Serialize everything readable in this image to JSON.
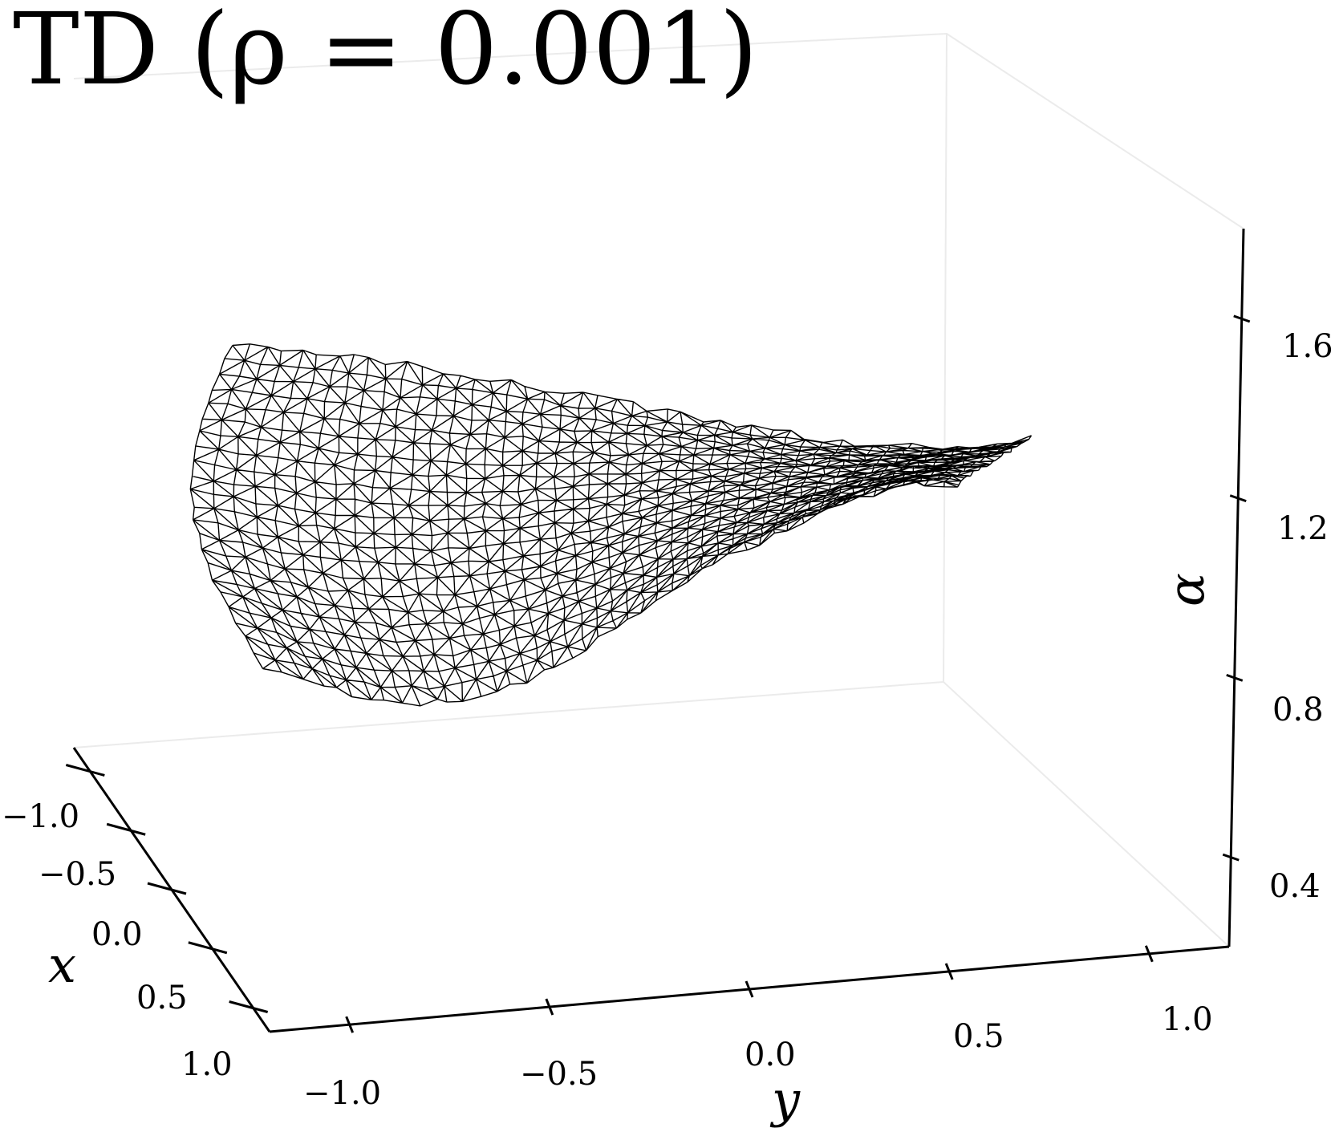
{
  "chart_data": {
    "type": "3d-wireframe",
    "title": "TD (ρ = 0.001)",
    "axes": {
      "x": {
        "label": "x",
        "ticks": [
          -1.0,
          -0.5,
          0.0,
          0.5,
          1.0
        ],
        "tick_labels": [
          "−1.0",
          "−0.5",
          "0.0",
          "0.5",
          "1.0"
        ],
        "range": [
          -1.2,
          1.2
        ]
      },
      "y": {
        "label": "y",
        "ticks": [
          -1.0,
          -0.5,
          0.0,
          0.5,
          1.0
        ],
        "tick_labels": [
          "−1.0",
          "−0.5",
          "0.0",
          "0.5",
          "1.0"
        ],
        "range": [
          -1.2,
          1.2
        ]
      },
      "z": {
        "label": "α",
        "ticks": [
          0.4,
          0.8,
          1.2,
          1.6
        ],
        "tick_labels": [
          "0.4",
          "0.8",
          "1.2",
          "1.6"
        ],
        "range": [
          0.2,
          1.8
        ]
      }
    },
    "surface": {
      "description_values": "wireframe of alpha over (x,y) domain",
      "max_alpha": 1.72,
      "min_alpha": 0.62,
      "tip_alpha": 1.35
    },
    "grid": false,
    "mesh_color": "#000000"
  }
}
